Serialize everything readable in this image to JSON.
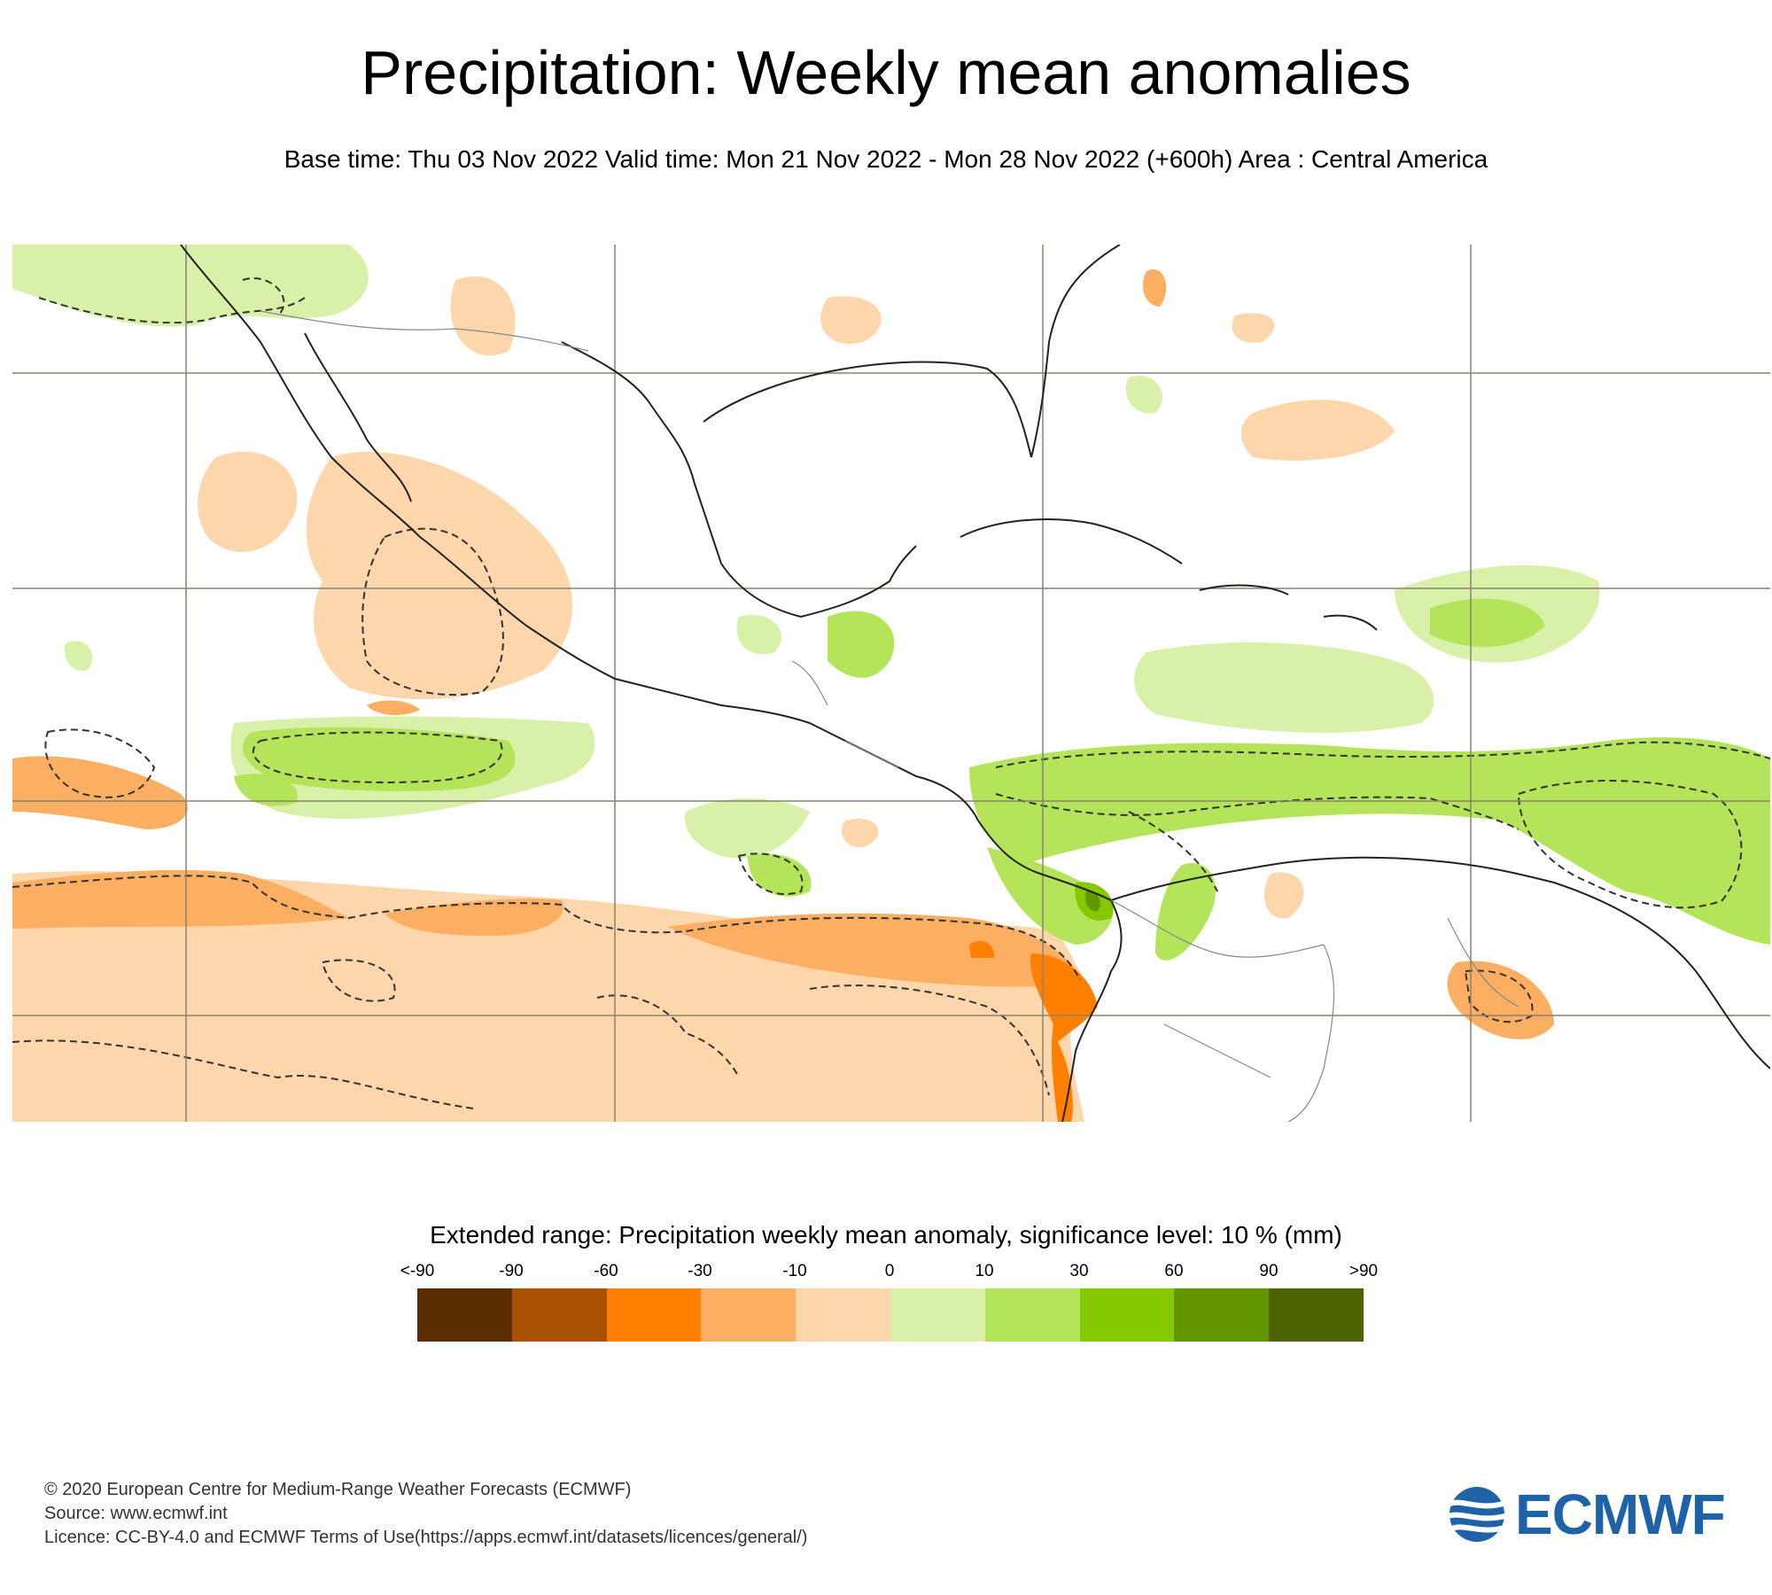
{
  "header": {
    "title": "Precipitation: Weekly mean anomalies",
    "subtitle": "Base time: Thu 03 Nov 2022 Valid time: Mon 21 Nov 2022 - Mon 28 Nov 2022 (+600h) Area : Central America"
  },
  "map": {
    "region": "Central America",
    "colors": {
      "land_border": "#333333",
      "graticule": "#8a8270",
      "significance_contour": "#333333"
    }
  },
  "legend": {
    "title": "Extended range: Precipitation weekly mean anomaly, significance level: 10 % (mm)",
    "labels": [
      "<-90",
      "-90",
      "-60",
      "-30",
      "-10",
      "0",
      "10",
      "30",
      "60",
      "90",
      ">90"
    ],
    "colors": [
      "#5c2c00",
      "#a85100",
      "#ff7f00",
      "#fcaf62",
      "#fdd6ac",
      "#d8f0a8",
      "#b4e45a",
      "#86c800",
      "#649600",
      "#4c6400"
    ]
  },
  "footer": {
    "copyright": "© 2020 European Centre for Medium-Range Weather Forecasts (ECMWF)",
    "source": "Source: www.ecmwf.int",
    "licence": "Licence: CC-BY-4.0 and ECMWF Terms of Use(https://apps.ecmwf.int/datasets/licences/general/)"
  },
  "logo": {
    "text": "ECMWF",
    "color": "#1e63a8"
  }
}
